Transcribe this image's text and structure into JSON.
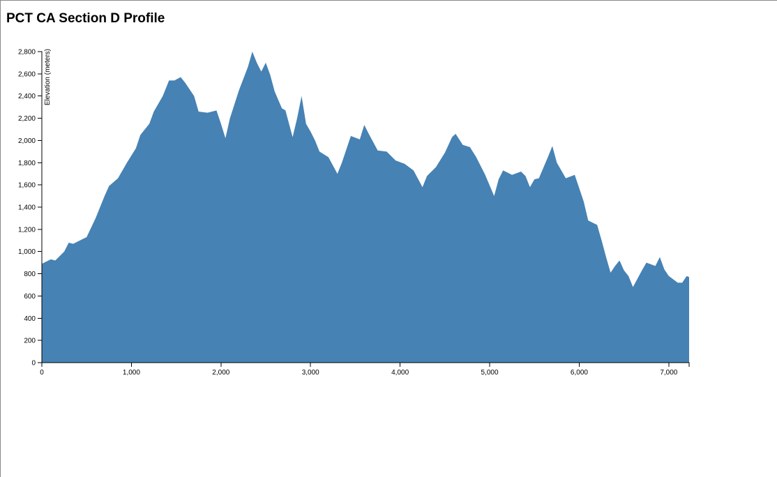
{
  "chart_data": {
    "type": "area",
    "title": "PCT CA Section D Profile",
    "y_label": "Elevation (meters)",
    "color": "#4682b4",
    "x": [
      0,
      100,
      150,
      250,
      300,
      350,
      400,
      500,
      600,
      700,
      750,
      850,
      950,
      1050,
      1100,
      1200,
      1250,
      1350,
      1420,
      1480,
      1550,
      1600,
      1700,
      1750,
      1850,
      1950,
      2000,
      2050,
      2100,
      2200,
      2300,
      2350,
      2400,
      2450,
      2500,
      2550,
      2600,
      2680,
      2720,
      2800,
      2850,
      2900,
      2950,
      3000,
      3050,
      3100,
      3200,
      3300,
      3350,
      3450,
      3550,
      3600,
      3650,
      3750,
      3850,
      3950,
      4050,
      4150,
      4250,
      4300,
      4400,
      4500,
      4580,
      4620,
      4700,
      4780,
      4850,
      4950,
      5050,
      5100,
      5150,
      5250,
      5350,
      5400,
      5450,
      5500,
      5550,
      5650,
      5700,
      5750,
      5800,
      5850,
      5950,
      6050,
      6100,
      6200,
      6250,
      6300,
      6350,
      6400,
      6450,
      6500,
      6550,
      6600,
      6700,
      6750,
      6850,
      6900,
      6950,
      7000,
      7100,
      7150,
      7200,
      7227
    ],
    "values": [
      890,
      930,
      920,
      1000,
      1080,
      1070,
      1090,
      1130,
      1300,
      1500,
      1590,
      1660,
      1800,
      1930,
      2050,
      2150,
      2260,
      2400,
      2540,
      2540,
      2570,
      2520,
      2400,
      2260,
      2250,
      2270,
      2150,
      2020,
      2200,
      2450,
      2660,
      2800,
      2700,
      2620,
      2700,
      2590,
      2440,
      2290,
      2270,
      2030,
      2200,
      2400,
      2150,
      2080,
      2000,
      1900,
      1850,
      1700,
      1800,
      2040,
      2010,
      2140,
      2060,
      1910,
      1900,
      1820,
      1790,
      1730,
      1580,
      1680,
      1760,
      1890,
      2030,
      2060,
      1960,
      1940,
      1850,
      1690,
      1500,
      1650,
      1730,
      1690,
      1720,
      1680,
      1580,
      1650,
      1660,
      1850,
      1950,
      1800,
      1730,
      1660,
      1690,
      1450,
      1280,
      1240,
      1100,
      950,
      810,
      870,
      920,
      830,
      780,
      680,
      830,
      900,
      870,
      950,
      840,
      780,
      720,
      720,
      780,
      770
    ],
    "xlim": [
      0,
      7227
    ],
    "ylim": [
      0,
      2800
    ],
    "xticks": [
      0,
      {
        "value": 1000,
        "label": "1,000"
      },
      {
        "value": 2000,
        "label": "2,000"
      },
      {
        "value": 3000,
        "label": "3,000"
      },
      {
        "value": 4000,
        "label": "4,000"
      },
      {
        "value": 5000,
        "label": "5,000"
      },
      {
        "value": 6000,
        "label": "6,000"
      },
      {
        "value": 7000,
        "label": "7,000"
      }
    ],
    "yticks": [
      0,
      200,
      400,
      600,
      800,
      {
        "value": 1000,
        "label": "1,000"
      },
      {
        "value": 1200,
        "label": "1,200"
      },
      {
        "value": 1400,
        "label": "1,400"
      },
      {
        "value": 1600,
        "label": "1,600"
      },
      {
        "value": 1800,
        "label": "1,800"
      },
      {
        "value": 2000,
        "label": "2,000"
      },
      {
        "value": 2200,
        "label": "2,200"
      },
      {
        "value": 2400,
        "label": "2,400"
      },
      {
        "value": 2600,
        "label": "2,600"
      },
      {
        "value": 2800,
        "label": "2,800"
      }
    ]
  }
}
